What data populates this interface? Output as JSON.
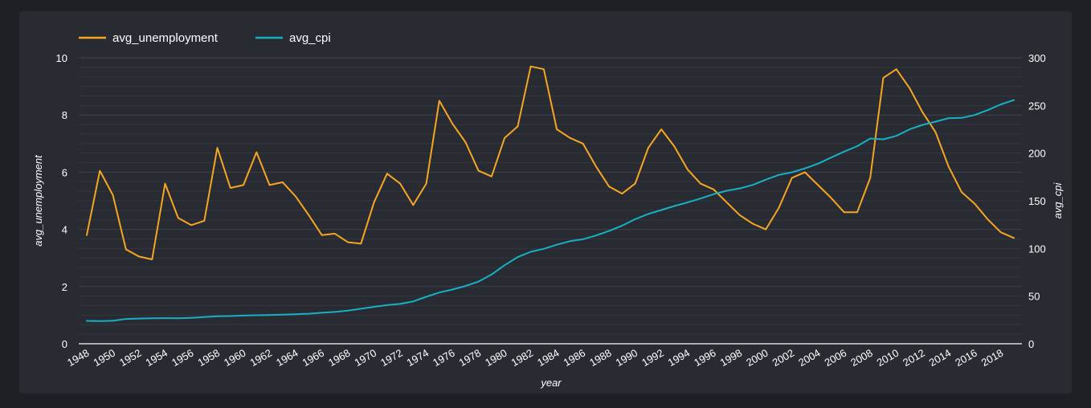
{
  "chart_data": {
    "type": "line",
    "x": [
      1948,
      1949,
      1950,
      1951,
      1952,
      1953,
      1954,
      1955,
      1956,
      1957,
      1958,
      1959,
      1960,
      1961,
      1962,
      1963,
      1964,
      1965,
      1966,
      1967,
      1968,
      1969,
      1970,
      1971,
      1972,
      1973,
      1974,
      1975,
      1976,
      1977,
      1978,
      1979,
      1980,
      1981,
      1982,
      1983,
      1984,
      1985,
      1986,
      1987,
      1988,
      1989,
      1990,
      1991,
      1992,
      1993,
      1994,
      1995,
      1996,
      1997,
      1998,
      1999,
      2000,
      2001,
      2002,
      2003,
      2004,
      2005,
      2006,
      2007,
      2008,
      2009,
      2010,
      2011,
      2012,
      2013,
      2014,
      2015,
      2016,
      2017,
      2018,
      2019
    ],
    "x_ticks": [
      "1948",
      "1950",
      "1952",
      "1954",
      "1956",
      "1958",
      "1960",
      "1962",
      "1964",
      "1966",
      "1968",
      "1970",
      "1972",
      "1974",
      "1976",
      "1978",
      "1980",
      "1982",
      "1984",
      "1986",
      "1988",
      "1990",
      "1992",
      "1994",
      "1996",
      "1998",
      "2000",
      "2002",
      "2004",
      "2006",
      "2008",
      "2010",
      "2012",
      "2014",
      "2016",
      "2018"
    ],
    "xlabel": "year",
    "series": [
      {
        "name": "avg_unemployment",
        "axis": "left",
        "color": "#f5a623",
        "values": [
          3.8,
          6.05,
          5.2,
          3.3,
          3.05,
          2.95,
          5.6,
          4.4,
          4.15,
          4.3,
          6.85,
          5.45,
          5.55,
          6.7,
          5.55,
          5.65,
          5.15,
          4.5,
          3.8,
          3.85,
          3.55,
          3.5,
          4.95,
          5.95,
          5.6,
          4.85,
          5.6,
          8.5,
          7.7,
          7.05,
          6.05,
          5.85,
          7.2,
          7.6,
          9.7,
          9.6,
          7.5,
          7.2,
          7.0,
          6.2,
          5.5,
          5.25,
          5.6,
          6.85,
          7.5,
          6.9,
          6.1,
          5.6,
          5.4,
          4.95,
          4.5,
          4.2,
          4.0,
          4.75,
          5.8,
          6.0,
          5.55,
          5.1,
          4.6,
          4.6,
          5.8,
          9.3,
          9.6,
          8.95,
          8.1,
          7.4,
          6.2,
          5.3,
          4.9,
          4.35,
          3.9,
          3.7
        ]
      },
      {
        "name": "avg_cpi",
        "axis": "right",
        "color": "#18b0c4",
        "values": [
          24.0,
          23.8,
          24.1,
          26.0,
          26.5,
          26.7,
          26.9,
          26.8,
          27.2,
          28.1,
          28.9,
          29.1,
          29.6,
          29.9,
          30.2,
          30.6,
          31.0,
          31.5,
          32.5,
          33.4,
          34.8,
          36.7,
          38.8,
          40.5,
          41.8,
          44.4,
          49.3,
          53.8,
          56.9,
          60.6,
          65.2,
          72.6,
          82.4,
          90.9,
          96.5,
          99.6,
          103.9,
          107.6,
          109.6,
          113.6,
          118.3,
          124.0,
          130.7,
          136.2,
          140.3,
          144.5,
          148.2,
          152.4,
          156.9,
          160.5,
          163.0,
          166.6,
          172.2,
          177.1,
          179.9,
          184.0,
          188.9,
          195.3,
          201.6,
          207.3,
          215.3,
          214.5,
          218.1,
          224.9,
          229.6,
          233.0,
          236.7,
          237.0,
          240.0,
          245.1,
          251.1,
          255.7
        ]
      }
    ],
    "y_left": {
      "label": "avg_unemployment",
      "range": [
        0,
        10
      ],
      "ticks": [
        "0",
        "2",
        "4",
        "6",
        "8",
        "10"
      ]
    },
    "y_right": {
      "label": "avg_cpi",
      "range": [
        0,
        300
      ],
      "ticks": [
        "0",
        "50",
        "100",
        "150",
        "200",
        "250",
        "300"
      ]
    },
    "legend_position": "top-left",
    "grid": true
  },
  "colors": {
    "background": "#1f2025",
    "panel": "#292b33",
    "grid": "#3a3c46",
    "text": "#ffffff"
  }
}
